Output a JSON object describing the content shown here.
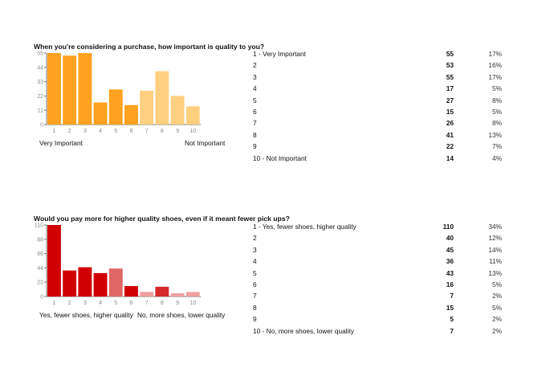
{
  "questions": [
    {
      "title": "When you're considering a purchase, how important is quality to you?",
      "left_label": "Very Important",
      "right_label": "Not Important",
      "rows": [
        {
          "label": "1 -   Very Important",
          "count": "55",
          "pct": "17%"
        },
        {
          "label": "2",
          "count": "53",
          "pct": "16%"
        },
        {
          "label": "3",
          "count": "55",
          "pct": "17%"
        },
        {
          "label": "4",
          "count": "17",
          "pct": "5%"
        },
        {
          "label": "5",
          "count": "27",
          "pct": "8%"
        },
        {
          "label": "6",
          "count": "15",
          "pct": "5%"
        },
        {
          "label": "7",
          "count": "26",
          "pct": "8%"
        },
        {
          "label": "8",
          "count": "41",
          "pct": "13%"
        },
        {
          "label": "9",
          "count": "22",
          "pct": "7%"
        },
        {
          "label": "10 - Not Important",
          "count": "14",
          "pct": "4%"
        }
      ]
    },
    {
      "title": "Would you pay more for higher quality shoes, even if it meant fewer pick ups?",
      "left_label": "Yes, fewer shoes, higher quality",
      "right_label": "No, more shoes, lower quality",
      "rows": [
        {
          "label": "1 -   Yes, fewer shoes, higher quality",
          "count": "110",
          "pct": "34%"
        },
        {
          "label": "2",
          "count": "40",
          "pct": "12%"
        },
        {
          "label": "3",
          "count": "45",
          "pct": "14%"
        },
        {
          "label": "4",
          "count": "36",
          "pct": "11%"
        },
        {
          "label": "5",
          "count": "43",
          "pct": "13%"
        },
        {
          "label": "6",
          "count": "16",
          "pct": "5%"
        },
        {
          "label": "7",
          "count": "7",
          "pct": "2%"
        },
        {
          "label": "8",
          "count": "15",
          "pct": "5%"
        },
        {
          "label": "9",
          "count": "5",
          "pct": "2%"
        },
        {
          "label": "10 - No, more shoes, lower quality",
          "count": "7",
          "pct": "2%"
        }
      ]
    }
  ],
  "chart_data": [
    {
      "type": "bar",
      "title": "When you're considering a purchase, how important is quality to you?",
      "categories": [
        "1",
        "2",
        "3",
        "4",
        "5",
        "6",
        "7",
        "8",
        "9",
        "10"
      ],
      "values": [
        55,
        53,
        55,
        17,
        27,
        15,
        26,
        41,
        22,
        14
      ],
      "yticks": [
        0,
        11,
        22,
        33,
        44,
        55
      ],
      "ylim": [
        0,
        55
      ],
      "xlabel": "",
      "ylabel": "",
      "colors": [
        "#ffa21f",
        "#ffa21f",
        "#ffa21f",
        "#ffa21f",
        "#ffa21f",
        "#ffa21f",
        "#ffcf80",
        "#ffcf80",
        "#ffcf80",
        "#ffcf80"
      ]
    },
    {
      "type": "bar",
      "title": "Would you pay more for higher quality shoes, even if it meant fewer pick ups?",
      "categories": [
        "1",
        "2",
        "3",
        "4",
        "5",
        "6",
        "7",
        "8",
        "9",
        "10"
      ],
      "values": [
        110,
        40,
        45,
        36,
        43,
        16,
        7,
        15,
        5,
        7
      ],
      "yticks": [
        0,
        22,
        44,
        66,
        88,
        110
      ],
      "ylim": [
        0,
        110
      ],
      "xlabel": "",
      "ylabel": "",
      "colors": [
        "#d10000",
        "#d10000",
        "#d10000",
        "#d10000",
        "#e06666",
        "#d10000",
        "#f0a0a0",
        "#d42a2a",
        "#f0a0a0",
        "#f0a0a0"
      ]
    }
  ]
}
